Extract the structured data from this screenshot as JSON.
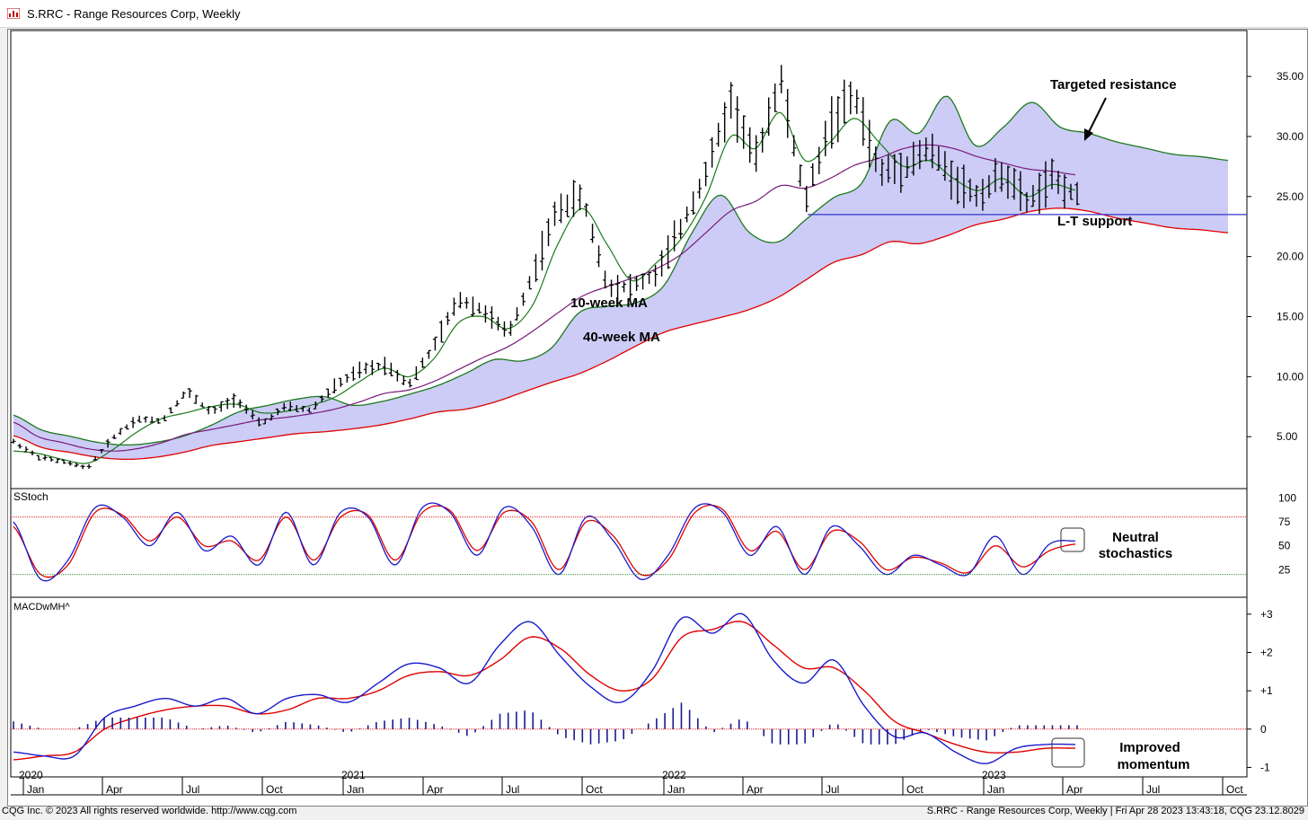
{
  "window": {
    "title": "S.RRC - Range Resources Corp, Weekly"
  },
  "status": {
    "left": "CQG Inc. © 2023 All rights reserved worldwide. http://www.cqg.com",
    "right": "S.RRC - Range Resources Corp, Weekly | Fri Apr 28 2023 13:43:18, CQG 23.12.8029"
  },
  "colors": {
    "price_bars": "#000000",
    "ma10": "#1a7a1a",
    "ma40": "#7a1a7a",
    "cloud_fill": "#ccccf6",
    "cloud_upper": "#1a7a1a",
    "cloud_lower": "#e00000",
    "support": "#3333cc",
    "stoch_k": "#1a1acc",
    "stoch_d": "#e00000",
    "macd": "#1a1acc",
    "signal": "#e00000",
    "hist": "#1a1a8c"
  },
  "chart_data": [
    {
      "type": "line",
      "panel": "price",
      "y_tick_labels": [
        "35.00",
        "30.00",
        "25.00",
        "20.00",
        "15.00",
        "10.00",
        "5.00"
      ],
      "ylim": [
        1.5,
        38
      ],
      "x": [
        "2020-01-03",
        "2020-01-31",
        "2020-02-28",
        "2020-03-27",
        "2020-04-24",
        "2020-05-22",
        "2020-06-19",
        "2020-07-17",
        "2020-08-14",
        "2020-09-11",
        "2020-10-09",
        "2020-11-06",
        "2020-12-04",
        "2021-01-01",
        "2021-01-29",
        "2021-02-26",
        "2021-03-26",
        "2021-04-23",
        "2021-05-21",
        "2021-06-18",
        "2021-07-16",
        "2021-08-13",
        "2021-09-10",
        "2021-10-08",
        "2021-11-05",
        "2021-12-03",
        "2021-12-31",
        "2022-01-28",
        "2022-02-25",
        "2022-03-25",
        "2022-04-22",
        "2022-05-20",
        "2022-06-17",
        "2022-07-15",
        "2022-08-12",
        "2022-09-09",
        "2022-10-07",
        "2022-11-04",
        "2022-12-02",
        "2022-12-30",
        "2023-01-27",
        "2023-02-24",
        "2023-03-24",
        "2023-04-28"
      ],
      "series": [
        {
          "name": "price",
          "values": [
            4.6,
            3.3,
            2.9,
            2.4,
            4.9,
            6.5,
            6.3,
            8.8,
            7.0,
            8.2,
            6.0,
            7.5,
            7.2,
            9.2,
            10.5,
            11.0,
            9.4,
            12.5,
            16.5,
            15.5,
            13.5,
            18.5,
            24.0,
            25.0,
            17.5,
            17.5,
            18.5,
            22.5,
            27.0,
            33.0,
            28.0,
            35.0,
            24.5,
            31.0,
            33.5,
            27.0,
            27.5,
            29.0,
            26.5,
            25.0,
            27.0,
            24.5,
            26.5,
            25.0
          ]
        },
        {
          "name": "10-week MA",
          "values": [
            3.8,
            3.6,
            3.1,
            2.8,
            3.9,
            5.4,
            6.5,
            7.0,
            7.5,
            7.7,
            7.0,
            7.1,
            7.6,
            8.3,
            9.6,
            10.7,
            10.0,
            11.5,
            14.5,
            15.0,
            14.0,
            16.0,
            21.0,
            24.0,
            21.0,
            18.0,
            19.5,
            21.5,
            25.0,
            30.0,
            29.0,
            32.0,
            28.0,
            29.5,
            31.5,
            29.5,
            27.5,
            28.0,
            26.5,
            25.5,
            26.5,
            25.0,
            26.0,
            25.5
          ]
        },
        {
          "name": "40-week MA",
          "values": [
            6.2,
            5.0,
            4.5,
            4.0,
            3.8,
            4.0,
            4.5,
            5.2,
            5.6,
            6.0,
            6.4,
            6.6,
            6.9,
            7.3,
            7.9,
            8.6,
            8.9,
            9.6,
            10.6,
            11.6,
            12.5,
            13.8,
            15.3,
            16.7,
            17.5,
            18.2,
            19.0,
            20.2,
            22.0,
            23.8,
            24.6,
            25.9,
            25.7,
            26.5,
            27.6,
            28.2,
            29.0,
            29.3,
            29.0,
            28.3,
            27.8,
            27.3,
            27.1,
            26.8
          ]
        }
      ]
    },
    {
      "type": "line",
      "panel": "stochastics",
      "title": "SStoch",
      "y_tick_labels": [
        "100",
        "75",
        "50",
        "25"
      ],
      "ylim": [
        0,
        105
      ],
      "reference_lines": [
        80,
        20
      ],
      "series": [
        {
          "name": "%K",
          "values": [
            75,
            15,
            35,
            90,
            80,
            50,
            85,
            45,
            60,
            30,
            85,
            30,
            85,
            80,
            30,
            90,
            85,
            40,
            90,
            70,
            20,
            80,
            55,
            15,
            40,
            90,
            85,
            40,
            70,
            20,
            70,
            50,
            20,
            40,
            30,
            20,
            60,
            20,
            52,
            55
          ]
        },
        {
          "name": "%D",
          "values": [
            70,
            20,
            30,
            85,
            82,
            55,
            80,
            50,
            55,
            35,
            80,
            35,
            80,
            82,
            35,
            85,
            87,
            45,
            85,
            75,
            25,
            75,
            60,
            20,
            35,
            85,
            88,
            45,
            65,
            25,
            65,
            55,
            25,
            38,
            32,
            22,
            50,
            28,
            45,
            52
          ]
        }
      ]
    },
    {
      "type": "line",
      "panel": "macd",
      "title": "MACDwMH^",
      "y_tick_labels": [
        "+3",
        "+2",
        "+1",
        "0",
        "-1"
      ],
      "ylim": [
        -1.2,
        3.2
      ],
      "series": [
        {
          "name": "MACD",
          "values": [
            -0.6,
            -0.7,
            -0.7,
            0.3,
            0.6,
            0.8,
            0.6,
            0.8,
            0.4,
            0.8,
            0.9,
            0.7,
            1.2,
            1.7,
            1.6,
            1.2,
            2.2,
            2.8,
            1.9,
            1.1,
            0.7,
            1.5,
            2.9,
            2.5,
            3.0,
            1.8,
            1.2,
            1.8,
            0.6,
            -0.2,
            -0.1,
            -0.6,
            -0.9,
            -0.5,
            -0.4,
            -0.4
          ]
        },
        {
          "name": "Signal",
          "values": [
            -0.8,
            -0.7,
            -0.6,
            0.0,
            0.3,
            0.5,
            0.6,
            0.6,
            0.4,
            0.5,
            0.8,
            0.8,
            1.0,
            1.4,
            1.5,
            1.4,
            1.8,
            2.4,
            2.1,
            1.4,
            1.0,
            1.3,
            2.4,
            2.6,
            2.8,
            2.2,
            1.6,
            1.6,
            1.0,
            0.2,
            -0.1,
            -0.4,
            -0.6,
            -0.6,
            -0.5,
            -0.5
          ]
        },
        {
          "name": "Histogram",
          "values": [
            0.2,
            0.0,
            0.0,
            0.3,
            0.3,
            0.3,
            0.0,
            0.1,
            -0.1,
            0.2,
            0.1,
            -0.1,
            0.2,
            0.3,
            0.1,
            -0.2,
            0.4,
            0.5,
            -0.2,
            -0.4,
            -0.3,
            0.2,
            0.7,
            -0.1,
            0.3,
            -0.4,
            -0.4,
            0.2,
            -0.4,
            -0.4,
            0.0,
            -0.2,
            -0.3,
            0.1,
            0.1,
            0.1
          ]
        }
      ]
    }
  ],
  "time_axis": {
    "years": [
      "2020",
      "2021",
      "2022",
      "2023"
    ],
    "months": [
      "Jan",
      "Apr",
      "Jul",
      "Oct",
      "Jan",
      "Apr",
      "Jul",
      "Oct",
      "Jan",
      "Apr",
      "Jul",
      "Oct",
      "Jan",
      "Apr",
      "Jul",
      "Oct"
    ]
  },
  "annotations": {
    "targeted_resistance": "Targeted resistance",
    "lt_support": "L-T support",
    "ma10": "10-week MA",
    "ma40": "40-week MA",
    "neutral_1": "Neutral",
    "neutral_2": "stochastics",
    "improved_1": "Improved",
    "improved_2": "momentum"
  }
}
